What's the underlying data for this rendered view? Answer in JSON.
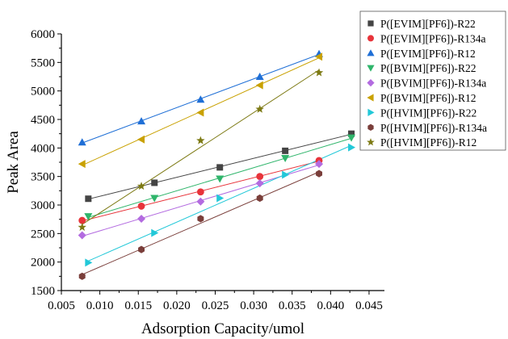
{
  "chart_data": {
    "type": "scatter",
    "xlabel": "Adsorption Capacity/umol",
    "ylabel": "Peak Area",
    "xlim": [
      0.005,
      0.047
    ],
    "ylim": [
      1500,
      6000
    ],
    "x_ticks": [
      "0.005",
      "0.010",
      "0.015",
      "0.020",
      "0.025",
      "0.030",
      "0.035",
      "0.040",
      "0.045"
    ],
    "y_ticks": [
      "1500",
      "2000",
      "2500",
      "3000",
      "3500",
      "4000",
      "4500",
      "5000",
      "5500",
      "6000"
    ],
    "grid": false,
    "legend_position": "top-right, outside plot",
    "series": [
      {
        "name": "P([EVIM][PF6])-R22",
        "color": "#444444",
        "marker": "square",
        "x": [
          0.0085,
          0.0171,
          0.0256,
          0.0341,
          0.0427
        ],
        "y": [
          3110,
          3390,
          3660,
          3950,
          4250
        ]
      },
      {
        "name": "P([EVIM][PF6])-R134a",
        "color": "#e8333a",
        "marker": "circle",
        "x": [
          0.0077,
          0.0154,
          0.0231,
          0.0308,
          0.0385
        ],
        "y": [
          2730,
          2980,
          3230,
          3500,
          3780
        ]
      },
      {
        "name": "P([EVIM][PF6])-R12",
        "color": "#1f6fd6",
        "marker": "triangle-up",
        "x": [
          0.0077,
          0.0154,
          0.0231,
          0.0308,
          0.0385
        ],
        "y": [
          4100,
          4470,
          4850,
          5250,
          5650
        ]
      },
      {
        "name": "P([BVIM][PF6])-R22",
        "color": "#2fb56b",
        "marker": "triangle-down",
        "x": [
          0.0085,
          0.0171,
          0.0256,
          0.0341,
          0.0427
        ],
        "y": [
          2800,
          3120,
          3460,
          3820,
          4180
        ]
      },
      {
        "name": "P([BVIM][PF6])-R134a",
        "color": "#b36be0",
        "marker": "diamond",
        "x": [
          0.0077,
          0.0154,
          0.0231,
          0.0308,
          0.0385
        ],
        "y": [
          2470,
          2760,
          3060,
          3380,
          3720
        ]
      },
      {
        "name": "P([BVIM][PF6])-R12",
        "color": "#c9a100",
        "marker": "triangle-left",
        "x": [
          0.0077,
          0.0154,
          0.0231,
          0.0308,
          0.0385
        ],
        "y": [
          3720,
          4150,
          4620,
          5100,
          5600
        ]
      },
      {
        "name": "P([HVIM][PF6])-R22",
        "color": "#22c8d8",
        "marker": "triangle-right",
        "x": [
          0.0085,
          0.0171,
          0.0256,
          0.0341,
          0.0427
        ],
        "y": [
          1990,
          2510,
          3120,
          3530,
          4010
        ]
      },
      {
        "name": "P([HVIM][PF6])-R134a",
        "color": "#7a3e3a",
        "marker": "hexagon",
        "x": [
          0.0077,
          0.0154,
          0.0231,
          0.0308,
          0.0385
        ],
        "y": [
          1750,
          2220,
          2760,
          3120,
          3550
        ]
      },
      {
        "name": "P([HVIM][PF6])-R12",
        "color": "#7d7a14",
        "marker": "star",
        "x": [
          0.0077,
          0.0154,
          0.0231,
          0.0308,
          0.0385
        ],
        "y": [
          2610,
          3330,
          4130,
          4680,
          5320
        ]
      }
    ]
  }
}
